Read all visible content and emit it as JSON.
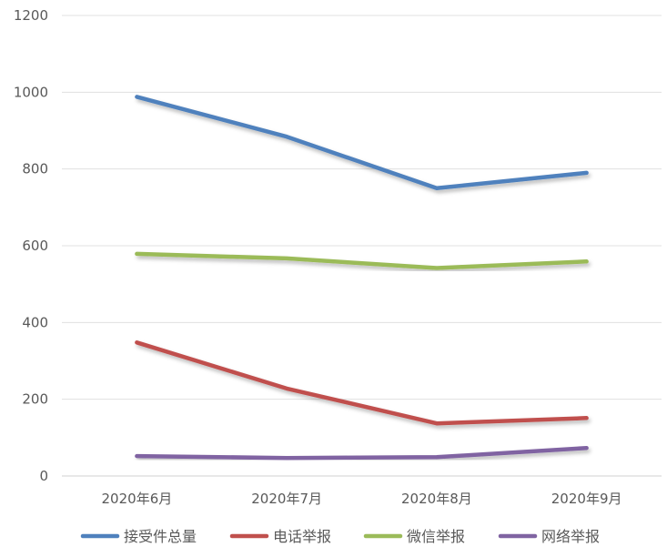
{
  "chart_data": {
    "type": "line",
    "title": "",
    "xlabel": "",
    "ylabel": "",
    "categories": [
      "2020年6月",
      "2020年7月",
      "2020年8月",
      "2020年9月"
    ],
    "ylim": [
      0,
      1200
    ],
    "yticks": [
      0,
      200,
      400,
      600,
      800,
      1000,
      1200
    ],
    "grid": true,
    "legend_position": "bottom",
    "series": [
      {
        "name": "接受件总量",
        "color": "#4F81BD",
        "values": [
          988,
          884,
          750,
          790
        ]
      },
      {
        "name": "电话举报",
        "color": "#C0504D",
        "values": [
          348,
          228,
          137,
          151
        ]
      },
      {
        "name": "微信举报",
        "color": "#9BBB59",
        "values": [
          579,
          567,
          542,
          559
        ]
      },
      {
        "name": "网络举报",
        "color": "#8064A2",
        "values": [
          52,
          47,
          49,
          73
        ]
      }
    ]
  }
}
